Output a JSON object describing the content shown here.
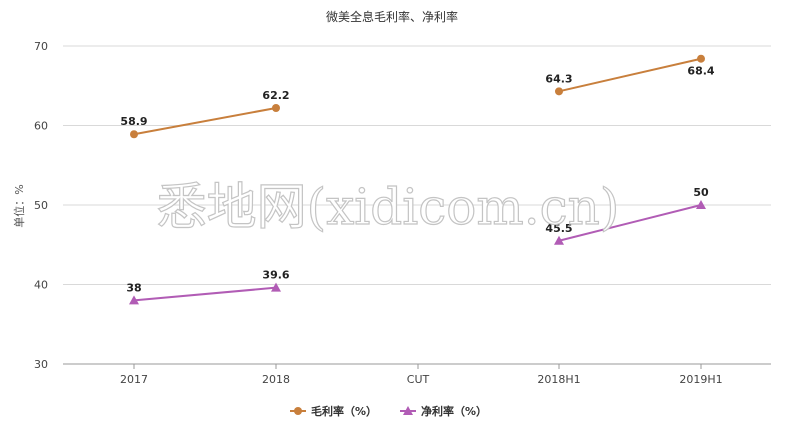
{
  "watermark": "悉地网(xidicom.cn)",
  "chart_data": {
    "type": "line",
    "title": "微美全息毛利率、净利率",
    "ylabel": "单位：%",
    "xlabel": "",
    "categories": [
      "2017",
      "2018",
      "CUT",
      "2018H1",
      "2019H1"
    ],
    "yticks": [
      "30",
      "40",
      "50",
      "60",
      "70"
    ],
    "ylim": [
      30,
      70
    ],
    "grid": true,
    "legend_position": "bottom",
    "series": [
      {
        "name": "毛利率（%）",
        "color": "#c87f3c",
        "marker": "circle",
        "values": [
          58.9,
          62.2,
          null,
          64.3,
          68.4
        ],
        "labels": [
          "58.9",
          "62.2",
          "",
          "64.3",
          "68.4"
        ]
      },
      {
        "name": "净利率（%）",
        "color": "#b15cb5",
        "marker": "triangle",
        "values": [
          38,
          39.6,
          null,
          45.5,
          50
        ],
        "labels": [
          "38",
          "39.6",
          "",
          "45.5",
          "50"
        ]
      }
    ]
  }
}
